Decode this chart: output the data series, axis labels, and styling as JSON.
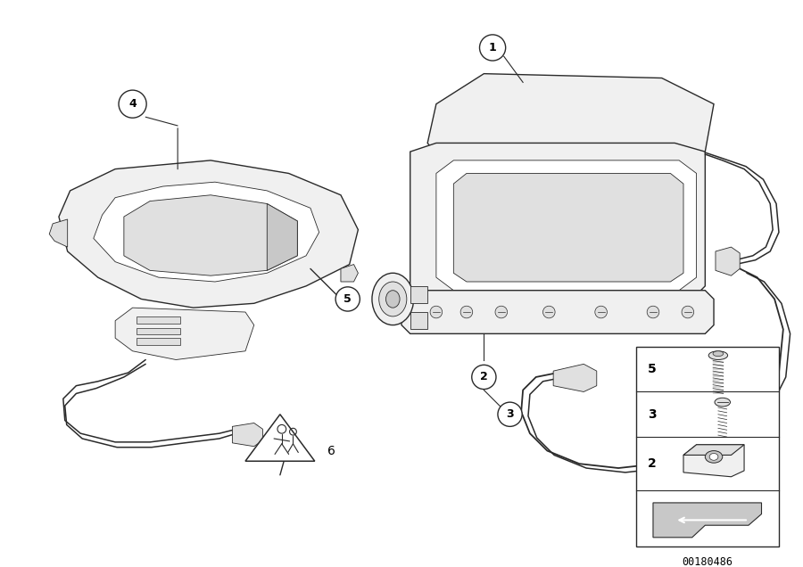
{
  "background_color": "#ffffff",
  "line_color": "#2a2a2a",
  "diagram_id": "00180486",
  "fig_width": 9.0,
  "fig_height": 6.36,
  "lw_main": 1.0,
  "lw_thin": 0.6,
  "lw_cable": 1.1,
  "fill_light": "#f0f0f0",
  "fill_mid": "#e0e0e0",
  "fill_dark": "#c8c8c8",
  "fill_shade": "#d8d8d8"
}
